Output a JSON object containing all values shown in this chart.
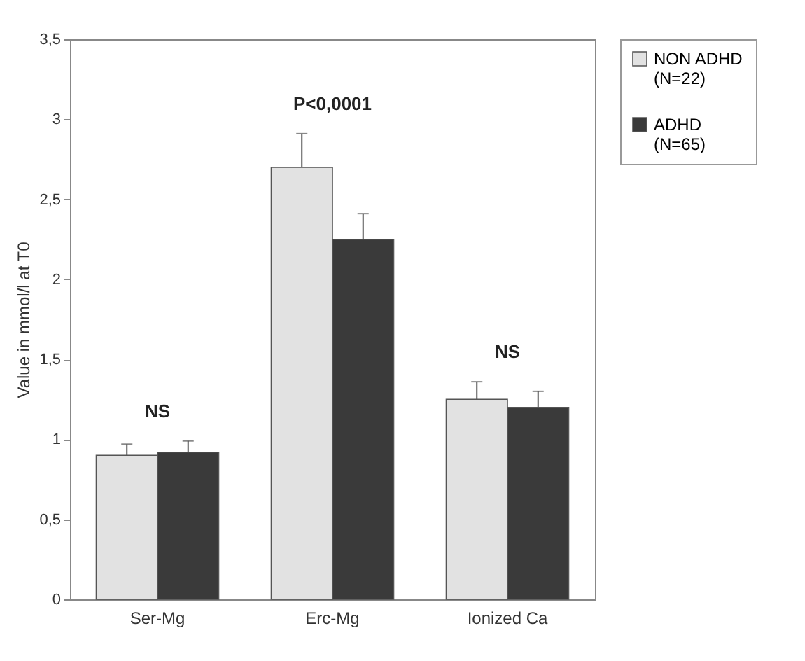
{
  "chart_data": {
    "type": "bar",
    "ylabel": "Value in mmol/l at T0",
    "categories": [
      "Ser-Mg",
      "Erc-Mg",
      "Ionized Ca"
    ],
    "series": [
      {
        "name": "NON ADHD (N=22)",
        "color": "#e2e2e2",
        "values": [
          0.9,
          2.7,
          1.25
        ],
        "errors": [
          [
            0.9,
            0.97
          ],
          [
            2.7,
            2.91
          ],
          [
            1.25,
            1.36
          ]
        ]
      },
      {
        "name": "ADHD (N=65)",
        "color": "#3a3a3a",
        "values": [
          0.92,
          2.25,
          1.2
        ],
        "errors": [
          [
            0.92,
            0.99
          ],
          [
            2.25,
            2.41
          ],
          [
            1.2,
            1.3
          ]
        ]
      }
    ],
    "ylim": [
      0,
      3.5
    ],
    "yticks": [
      0,
      {
        "value": 0.5,
        "label": "0,5"
      },
      1,
      {
        "value": 1.5,
        "label": "1,5"
      },
      2,
      {
        "value": 2.5,
        "label": "2,5"
      },
      3,
      {
        "value": 3.5,
        "label": "3,5"
      }
    ],
    "annotations": [
      "NS",
      "P<0,0001",
      "NS"
    ],
    "grid": false,
    "legend": "top right"
  }
}
